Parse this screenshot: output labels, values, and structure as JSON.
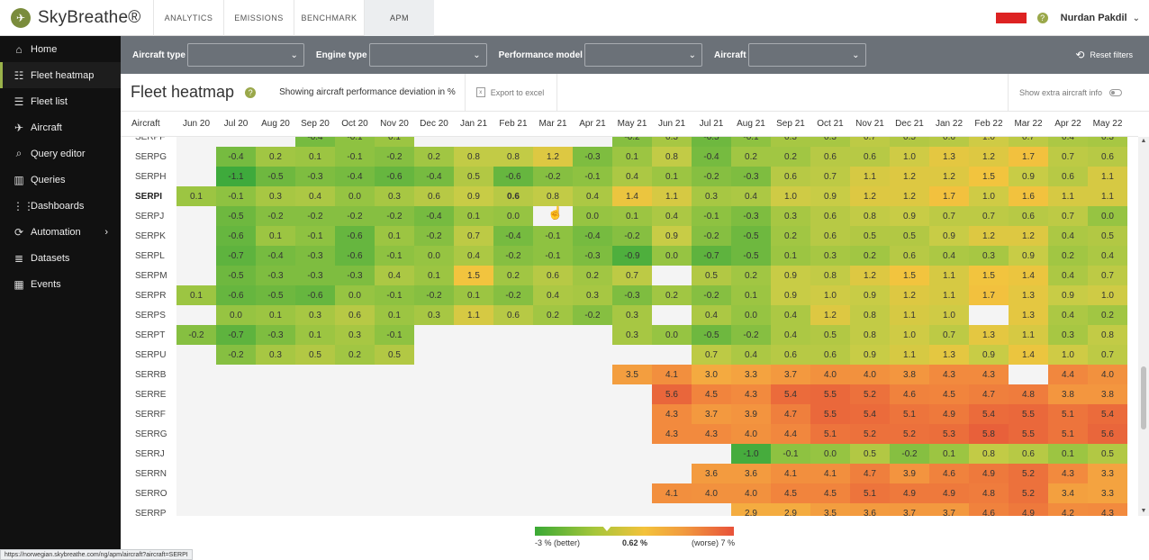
{
  "app": {
    "name": "SkyBreathe®"
  },
  "nav": {
    "tabs": [
      {
        "label": "ANALYTICS",
        "active": false
      },
      {
        "label": "EMISSIONS",
        "active": false
      },
      {
        "label": "BENCHMARK",
        "active": false
      },
      {
        "label": "APM",
        "active": true
      }
    ]
  },
  "user": {
    "name": "Nurdan Pakdil",
    "airline_logo": "norwegian"
  },
  "sidebar": {
    "items": [
      {
        "label": "Home",
        "icon": "home-icon",
        "glyph": "⌂",
        "active": false
      },
      {
        "label": "Fleet heatmap",
        "icon": "heatmap-icon",
        "glyph": "☷",
        "active": true
      },
      {
        "label": "Fleet list",
        "icon": "list-icon",
        "glyph": "☰",
        "active": false
      },
      {
        "label": "Aircraft",
        "icon": "airplane-icon",
        "glyph": "✈",
        "active": false
      },
      {
        "label": "Query editor",
        "icon": "search-icon",
        "glyph": "⌕",
        "active": false
      },
      {
        "label": "Queries",
        "icon": "bar-chart-icon",
        "glyph": "▥",
        "active": false
      },
      {
        "label": "Dashboards",
        "icon": "grid-icon",
        "glyph": "⋮⋮",
        "active": false
      },
      {
        "label": "Automation",
        "icon": "automation-icon",
        "glyph": "⟳",
        "active": false,
        "has_submenu": true
      },
      {
        "label": "Datasets",
        "icon": "database-icon",
        "glyph": "≣",
        "active": false
      },
      {
        "label": "Events",
        "icon": "calendar-icon",
        "glyph": "▦",
        "active": false
      }
    ]
  },
  "filters": {
    "items": [
      {
        "label": "Aircraft type",
        "value": ""
      },
      {
        "label": "Engine type",
        "value": ""
      },
      {
        "label": "Performance model",
        "value": ""
      },
      {
        "label": "Aircraft",
        "value": ""
      }
    ],
    "reset_label": "Reset filters"
  },
  "header": {
    "title": "Fleet heatmap",
    "deviation_note": "Showing aircraft performance deviation in %",
    "export_label": "Export to excel",
    "extra_info_label": "Show extra aircraft info",
    "extra_info_enabled": false
  },
  "heatmap": {
    "aircraft_header": "Aircraft",
    "months": [
      "Jun 20",
      "Jul 20",
      "Aug 20",
      "Sep 20",
      "Oct 20",
      "Nov 20",
      "Dec 20",
      "Jan 21",
      "Feb 21",
      "Mar 21",
      "Apr 21",
      "May 21",
      "Jun 21",
      "Jul 21",
      "Aug 21",
      "Sep 21",
      "Oct 21",
      "Nov 21",
      "Dec 21",
      "Jan 22",
      "Feb 22",
      "Mar 22",
      "Apr 22",
      "May 22"
    ],
    "highlighted_row": "SERPI",
    "highlighted_cell": "SERPI Feb 21",
    "rows": [
      {
        "aircraft": "SERPF",
        "values": [
          null,
          null,
          null,
          -0.4,
          -0.1,
          0.1,
          null,
          null,
          null,
          null,
          null,
          -0.2,
          0.3,
          -0.5,
          -0.1,
          0.3,
          0.3,
          0.7,
          0.5,
          0.6,
          1.0,
          0.7,
          0.4,
          0.3
        ]
      },
      {
        "aircraft": "SERPG",
        "values": [
          null,
          -0.4,
          0.2,
          0.1,
          -0.1,
          -0.2,
          0.2,
          0.8,
          0.8,
          1.2,
          -0.3,
          0.1,
          0.8,
          -0.4,
          0.2,
          0.2,
          0.6,
          0.6,
          1.0,
          1.3,
          1.2,
          1.7,
          0.7,
          0.6
        ]
      },
      {
        "aircraft": "SERPH",
        "values": [
          null,
          -1.1,
          -0.5,
          -0.3,
          -0.4,
          -0.6,
          -0.4,
          0.5,
          -0.6,
          -0.2,
          -0.1,
          0.4,
          0.1,
          -0.2,
          -0.3,
          0.6,
          0.7,
          1.1,
          1.2,
          1.2,
          1.5,
          0.9,
          0.6,
          1.1
        ]
      },
      {
        "aircraft": "SERPI",
        "values": [
          0.1,
          -0.1,
          0.3,
          0.4,
          0.0,
          0.3,
          0.6,
          0.9,
          0.6,
          0.8,
          0.4,
          1.4,
          1.1,
          0.3,
          0.4,
          1.0,
          0.9,
          1.2,
          1.2,
          1.7,
          1.0,
          1.6,
          1.1,
          1.1
        ]
      },
      {
        "aircraft": "SERPJ",
        "values": [
          null,
          -0.5,
          -0.2,
          -0.2,
          -0.2,
          -0.2,
          -0.4,
          0.1,
          0.0,
          null,
          0.0,
          0.1,
          0.4,
          -0.1,
          -0.3,
          0.3,
          0.6,
          0.8,
          0.9,
          0.7,
          0.7,
          0.6,
          0.7,
          0.0
        ]
      },
      {
        "aircraft": "SERPK",
        "values": [
          null,
          -0.6,
          0.1,
          -0.1,
          -0.6,
          0.1,
          -0.2,
          0.7,
          -0.4,
          -0.1,
          -0.4,
          -0.2,
          0.9,
          -0.2,
          -0.5,
          0.2,
          0.6,
          0.5,
          0.5,
          0.9,
          1.2,
          1.2,
          0.4,
          0.5
        ]
      },
      {
        "aircraft": "SERPL",
        "values": [
          null,
          -0.7,
          -0.4,
          -0.3,
          -0.6,
          -0.1,
          0.0,
          0.4,
          -0.2,
          -0.1,
          -0.3,
          -0.9,
          0.0,
          -0.7,
          -0.5,
          0.1,
          0.3,
          0.2,
          0.6,
          0.4,
          0.3,
          0.9,
          0.2,
          0.4
        ]
      },
      {
        "aircraft": "SERPM",
        "values": [
          null,
          -0.5,
          -0.3,
          -0.3,
          -0.3,
          0.4,
          0.1,
          1.5,
          0.2,
          0.6,
          0.2,
          0.7,
          null,
          0.5,
          0.2,
          0.9,
          0.8,
          1.2,
          1.5,
          1.1,
          1.5,
          1.4,
          0.4,
          0.7
        ]
      },
      {
        "aircraft": "SERPR",
        "values": [
          0.1,
          -0.6,
          -0.5,
          -0.6,
          0.0,
          -0.1,
          -0.2,
          0.1,
          -0.2,
          0.4,
          0.3,
          -0.3,
          0.2,
          -0.2,
          0.1,
          0.9,
          1.0,
          0.9,
          1.2,
          1.1,
          1.7,
          1.3,
          0.9,
          1.0
        ]
      },
      {
        "aircraft": "SERPS",
        "values": [
          null,
          0.0,
          0.1,
          0.3,
          0.6,
          0.1,
          0.3,
          1.1,
          0.6,
          0.2,
          -0.2,
          0.3,
          null,
          0.4,
          0.0,
          0.4,
          1.2,
          0.8,
          1.1,
          1.0,
          null,
          1.3,
          0.4,
          0.2
        ]
      },
      {
        "aircraft": "SERPT",
        "values": [
          -0.2,
          -0.7,
          -0.3,
          0.1,
          0.3,
          -0.1,
          null,
          null,
          null,
          null,
          null,
          0.3,
          0.0,
          -0.5,
          -0.2,
          0.4,
          0.5,
          0.8,
          1.0,
          0.7,
          1.3,
          1.1,
          0.3,
          0.8
        ]
      },
      {
        "aircraft": "SERPU",
        "values": [
          null,
          -0.2,
          0.3,
          0.5,
          0.2,
          0.5,
          null,
          null,
          null,
          null,
          null,
          null,
          null,
          0.7,
          0.4,
          0.6,
          0.6,
          0.9,
          1.1,
          1.3,
          0.9,
          1.4,
          1.0,
          0.7
        ]
      },
      {
        "aircraft": "SERRB",
        "values": [
          null,
          null,
          null,
          null,
          null,
          null,
          null,
          null,
          null,
          null,
          null,
          3.5,
          4.1,
          3.0,
          3.3,
          3.7,
          4.0,
          4.0,
          3.8,
          4.3,
          4.3,
          null,
          4.4,
          4.0
        ]
      },
      {
        "aircraft": "SERRE",
        "values": [
          null,
          null,
          null,
          null,
          null,
          null,
          null,
          null,
          null,
          null,
          null,
          null,
          5.6,
          4.5,
          4.3,
          5.4,
          5.5,
          5.2,
          4.6,
          4.5,
          4.7,
          4.8,
          3.8,
          3.8
        ]
      },
      {
        "aircraft": "SERRF",
        "values": [
          null,
          null,
          null,
          null,
          null,
          null,
          null,
          null,
          null,
          null,
          null,
          null,
          4.3,
          3.7,
          3.9,
          4.7,
          5.5,
          5.4,
          5.1,
          4.9,
          5.4,
          5.5,
          5.1,
          5.4
        ]
      },
      {
        "aircraft": "SERRG",
        "values": [
          null,
          null,
          null,
          null,
          null,
          null,
          null,
          null,
          null,
          null,
          null,
          null,
          4.3,
          4.3,
          4.0,
          4.4,
          5.1,
          5.2,
          5.2,
          5.3,
          5.8,
          5.5,
          5.1,
          5.6
        ]
      },
      {
        "aircraft": "SERRJ",
        "values": [
          null,
          null,
          null,
          null,
          null,
          null,
          null,
          null,
          null,
          null,
          null,
          null,
          null,
          null,
          -1.0,
          -0.1,
          0.0,
          0.5,
          -0.2,
          0.1,
          0.8,
          0.6,
          0.1,
          0.5
        ]
      },
      {
        "aircraft": "SERRN",
        "values": [
          null,
          null,
          null,
          null,
          null,
          null,
          null,
          null,
          null,
          null,
          null,
          null,
          null,
          3.6,
          3.6,
          4.1,
          4.1,
          4.7,
          3.9,
          4.6,
          4.9,
          5.2,
          4.3,
          3.3
        ]
      },
      {
        "aircraft": "SERRO",
        "values": [
          null,
          null,
          null,
          null,
          null,
          null,
          null,
          null,
          null,
          null,
          null,
          null,
          4.1,
          4.0,
          4.0,
          4.5,
          4.5,
          5.1,
          4.9,
          4.9,
          4.8,
          5.2,
          3.4,
          3.3
        ]
      },
      {
        "aircraft": "SERRP",
        "values": [
          null,
          null,
          null,
          null,
          null,
          null,
          null,
          null,
          null,
          null,
          null,
          null,
          null,
          null,
          2.9,
          2.9,
          3.5,
          3.6,
          3.7,
          3.7,
          4.6,
          4.9,
          4.2,
          4.3
        ]
      }
    ]
  },
  "legend": {
    "min_label": "-3 % (better)",
    "current_label": "0.62 %",
    "max_label": "(worse) 7 %",
    "min": -3,
    "max": 7,
    "current": 0.62
  },
  "statusbar": {
    "url": "https://norwegian.skybreathe.com/ng/apm/aircraft?aircraft=SERPI"
  },
  "colors": {
    "sidebar_bg": "#111111",
    "accent": "#9ab24a",
    "filter_bg": "#6b7178"
  }
}
